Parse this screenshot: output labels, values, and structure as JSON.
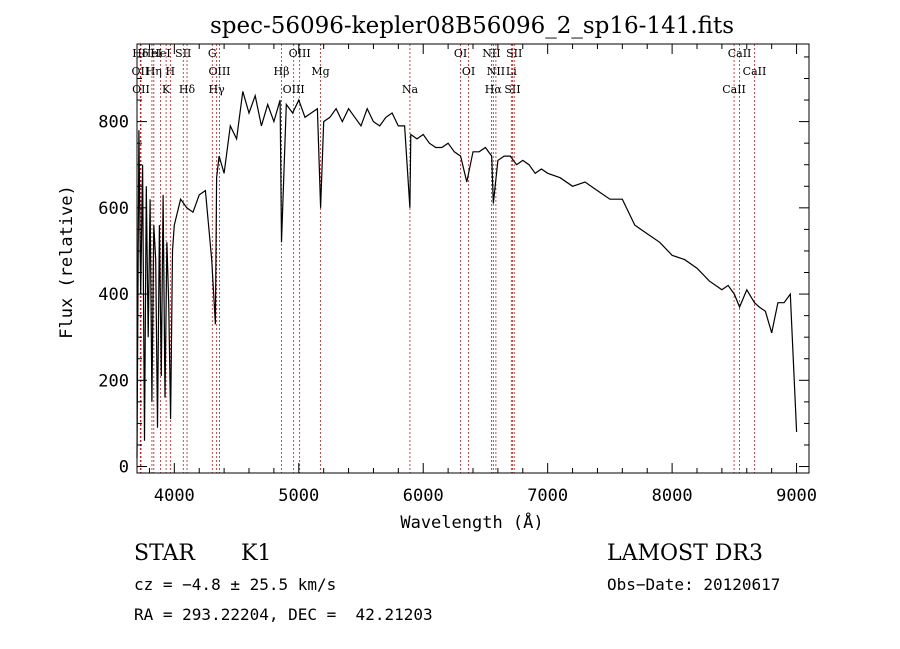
{
  "chart_data": {
    "type": "line",
    "title": "spec-56096-kepler08B56096_2_sp16-141.fits",
    "xlabel": "Wavelength (Å)",
    "ylabel": "Flux (relative)",
    "xlim": [
      3700,
      9100
    ],
    "ylim": [
      -15,
      980
    ],
    "x_ticks": [
      4000,
      5000,
      6000,
      7000,
      8000,
      9000
    ],
    "y_ticks": [
      0,
      200,
      400,
      600,
      800
    ],
    "series": [
      {
        "name": "flux",
        "x": [
          3700,
          3715,
          3730,
          3745,
          3760,
          3775,
          3790,
          3805,
          3820,
          3835,
          3850,
          3865,
          3880,
          3895,
          3910,
          3925,
          3940,
          3955,
          3970,
          3985,
          4000,
          4050,
          4100,
          4150,
          4200,
          4250,
          4300,
          4330,
          4340,
          4360,
          4400,
          4450,
          4500,
          4550,
          4600,
          4650,
          4700,
          4750,
          4800,
          4850,
          4861,
          4900,
          4950,
          5000,
          5050,
          5100,
          5150,
          5175,
          5200,
          5250,
          5300,
          5350,
          5400,
          5450,
          5500,
          5550,
          5600,
          5650,
          5700,
          5750,
          5800,
          5850,
          5893,
          5900,
          5950,
          6000,
          6050,
          6100,
          6150,
          6200,
          6250,
          6300,
          6350,
          6400,
          6450,
          6500,
          6550,
          6563,
          6600,
          6650,
          6700,
          6750,
          6800,
          6850,
          6900,
          6950,
          7000,
          7100,
          7200,
          7300,
          7400,
          7500,
          7600,
          7700,
          7800,
          7900,
          8000,
          8100,
          8200,
          8300,
          8400,
          8450,
          8500,
          8542,
          8600,
          8662,
          8700,
          8750,
          8800,
          8850,
          8900,
          8950,
          9000
        ],
        "y": [
          20,
          780,
          400,
          700,
          60,
          650,
          300,
          620,
          150,
          560,
          480,
          90,
          560,
          210,
          630,
          160,
          520,
          380,
          110,
          500,
          560,
          620,
          600,
          590,
          630,
          640,
          480,
          330,
          670,
          720,
          680,
          790,
          760,
          870,
          820,
          860,
          790,
          840,
          800,
          850,
          520,
          840,
          820,
          850,
          810,
          820,
          830,
          600,
          800,
          810,
          830,
          800,
          830,
          810,
          790,
          830,
          800,
          790,
          810,
          820,
          790,
          790,
          600,
          770,
          760,
          770,
          750,
          740,
          740,
          750,
          730,
          720,
          660,
          730,
          730,
          740,
          720,
          610,
          710,
          720,
          720,
          700,
          710,
          700,
          680,
          690,
          680,
          670,
          650,
          660,
          640,
          620,
          620,
          560,
          540,
          520,
          490,
          480,
          460,
          430,
          410,
          420,
          400,
          370,
          410,
          380,
          370,
          360,
          310,
          380,
          380,
          400,
          80
        ]
      }
    ],
    "line_markers": [
      {
        "label": "Hδ",
        "x": 3727
      },
      {
        "label": "OII",
        "x": 3727
      },
      {
        "label": "OII",
        "x": 3732
      },
      {
        "label": "HeI",
        "x": 3820
      },
      {
        "label": "Hη",
        "x": 3835
      },
      {
        "label": "K",
        "x": 3934
      },
      {
        "label": "HeI",
        "x": 3889
      },
      {
        "label": "H",
        "x": 3968
      },
      {
        "label": "Hδ",
        "x": 4102
      },
      {
        "label": "SII",
        "x": 4072
      },
      {
        "label": "OIII",
        "x": 4363
      },
      {
        "label": "Hγ",
        "x": 4340
      },
      {
        "label": "G",
        "x": 4305
      },
      {
        "label": "Hβ",
        "x": 4861
      },
      {
        "label": "OIII",
        "x": 4959
      },
      {
        "label": "OIII",
        "x": 5007
      },
      {
        "label": "Mg",
        "x": 5175
      },
      {
        "label": "Na",
        "x": 5893
      },
      {
        "label": "OI",
        "x": 6300
      },
      {
        "label": "OI",
        "x": 6364
      },
      {
        "label": "Hα",
        "x": 6563
      },
      {
        "label": "NII",
        "x": 6548
      },
      {
        "label": "NII",
        "x": 6584
      },
      {
        "label": "SII",
        "x": 6717
      },
      {
        "label": "SII",
        "x": 6731
      },
      {
        "label": "Li",
        "x": 6708
      },
      {
        "label": "CaII",
        "x": 8498
      },
      {
        "label": "CaII",
        "x": 8542
      },
      {
        "label": "CaII",
        "x": 8662
      }
    ]
  },
  "info": {
    "class_label": "STAR",
    "subclass": "K1",
    "survey": "LAMOST DR3",
    "redshift": "cz = −4.8 ± 25.5 km/s",
    "obs_date": "Obs−Date: 20120617",
    "coords": "RA = 293.22204, DEC =  42.21203"
  },
  "colors": {
    "spectrum": "#000000",
    "markers": "#b22222",
    "axes": "#000000"
  }
}
